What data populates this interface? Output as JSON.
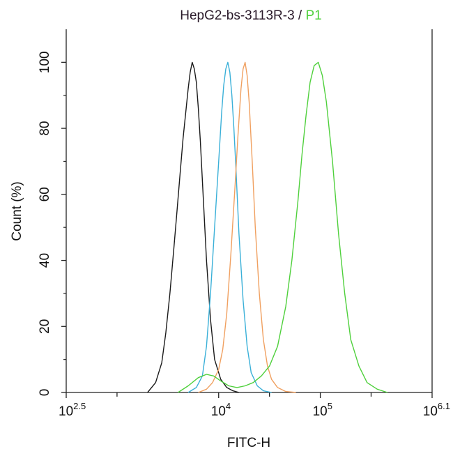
{
  "title": {
    "sample": "HepG2-bs-3113R-3",
    "separator": " / ",
    "gate": "P1",
    "gate_color": "#4fd03c"
  },
  "chart_data": {
    "type": "line",
    "title": "HepG2-bs-3113R-3 / P1",
    "xlabel": "FITC-H",
    "ylabel": "Count  (%)",
    "x_scale": "log10",
    "xlim_log10": [
      2.5,
      6.1
    ],
    "ylim": [
      0,
      110
    ],
    "grid": false,
    "x_ticks": [
      {
        "base": "10",
        "exp": "2.5",
        "value_log10": 2.5
      },
      {
        "base": "10",
        "exp": "4",
        "value_log10": 4
      },
      {
        "base": "10",
        "exp": "5",
        "value_log10": 5
      },
      {
        "base": "10",
        "exp": "6.1",
        "value_log10": 6.1
      }
    ],
    "x_minor_ticks_log10": [
      3,
      4.5,
      5.5
    ],
    "y_ticks": [
      0,
      20,
      40,
      60,
      80,
      100
    ],
    "series": [
      {
        "color": "#1a1a1a",
        "x_log10": [
          3.3,
          3.38,
          3.44,
          3.48,
          3.52,
          3.56,
          3.59,
          3.62,
          3.65,
          3.68,
          3.7,
          3.72,
          3.74,
          3.76,
          3.78,
          3.8,
          3.82,
          3.85,
          3.88,
          3.92,
          3.96,
          4.02,
          4.08,
          4.14,
          4.2
        ],
        "y": [
          0,
          3,
          9,
          18,
          30,
          44,
          55,
          66,
          77,
          86,
          92,
          97,
          100,
          98,
          94,
          86,
          76,
          58,
          40,
          22,
          10,
          4,
          1.5,
          0.5,
          0
        ]
      },
      {
        "color": "#3ab0d8",
        "x_log10": [
          3.7,
          3.78,
          3.84,
          3.88,
          3.92,
          3.96,
          4.0,
          4.03,
          4.05,
          4.07,
          4.09,
          4.11,
          4.13,
          4.15,
          4.17,
          4.2,
          4.24,
          4.28,
          4.32,
          4.38,
          4.44,
          4.52
        ],
        "y": [
          0,
          1.5,
          5,
          14,
          30,
          50,
          70,
          85,
          93,
          98,
          100,
          97,
          90,
          80,
          68,
          48,
          28,
          14,
          6,
          2,
          0.5,
          0
        ]
      },
      {
        "color": "#f0a060",
        "x_log10": [
          3.8,
          3.88,
          3.94,
          4.0,
          4.04,
          4.08,
          4.12,
          4.16,
          4.19,
          4.22,
          4.24,
          4.26,
          4.28,
          4.3,
          4.33,
          4.36,
          4.4,
          4.44,
          4.48,
          4.52,
          4.58,
          4.66,
          4.76
        ],
        "y": [
          0,
          1,
          3,
          7,
          13,
          24,
          42,
          62,
          78,
          92,
          98,
          100,
          96,
          88,
          70,
          50,
          30,
          16,
          8,
          4,
          1.5,
          0.3,
          0
        ]
      },
      {
        "color": "#4fd03c",
        "x_log10": [
          3.6,
          3.7,
          3.8,
          3.88,
          3.95,
          4.02,
          4.1,
          4.18,
          4.26,
          4.34,
          4.42,
          4.5,
          4.58,
          4.66,
          4.72,
          4.78,
          4.82,
          4.86,
          4.9,
          4.94,
          4.98,
          5.02,
          5.06,
          5.12,
          5.18,
          5.24,
          5.3,
          5.38,
          5.46,
          5.56,
          5.66
        ],
        "y": [
          0,
          2,
          4.5,
          5.5,
          5,
          3.5,
          2,
          1.5,
          2,
          3,
          5,
          8,
          14,
          26,
          40,
          58,
          72,
          84,
          94,
          99,
          100,
          96,
          88,
          70,
          48,
          30,
          16,
          8,
          3,
          1,
          0
        ]
      }
    ]
  }
}
